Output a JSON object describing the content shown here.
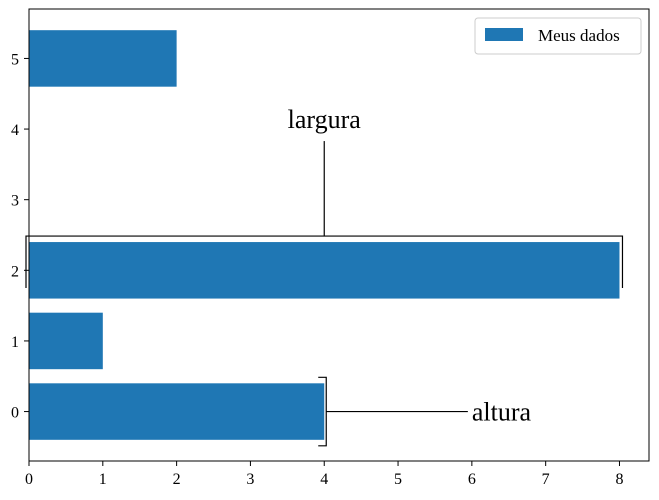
{
  "chart_data": {
    "type": "bar",
    "orientation": "horizontal",
    "categories": [
      0,
      1,
      2,
      3,
      4,
      5
    ],
    "values": [
      4,
      1,
      8,
      0,
      0,
      2
    ],
    "color": "#1f77b4",
    "series": [
      {
        "name": "Meus dados",
        "values": [
          4,
          1,
          8,
          0,
          0,
          2
        ]
      }
    ],
    "xlim": [
      0,
      8.4
    ],
    "ylim": [
      -0.7,
      5.7
    ],
    "xticks": [
      0,
      1,
      2,
      3,
      4,
      5,
      6,
      7,
      8
    ],
    "yticks": [
      0,
      1,
      2,
      3,
      4,
      5
    ],
    "legend": {
      "label": "Meus dados",
      "location": "top-right"
    },
    "annotations": {
      "width": {
        "text": "largura",
        "value_x": 4,
        "value_y": 4
      },
      "height": {
        "text": "altura",
        "value_x": 6,
        "value_y": 0
      }
    },
    "grid": false
  }
}
